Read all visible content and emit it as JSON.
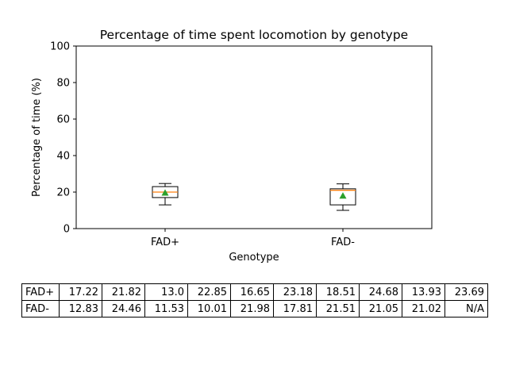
{
  "chart_data": {
    "type": "box",
    "title": "Percentage of time spent locomotion by genotype",
    "xlabel": "Genotype",
    "ylabel": "Percentage of time (%)",
    "ylim": [
      0,
      100
    ],
    "yticks": [
      0,
      20,
      40,
      60,
      80,
      100
    ],
    "categories": [
      "FAD+",
      "FAD-"
    ],
    "boxes": [
      {
        "category": "FAD+",
        "whisker_low": 13.0,
        "q1": 17.0,
        "median": 20.0,
        "q3": 23.0,
        "whisker_high": 24.7,
        "mean": 19.6
      },
      {
        "category": "FAD-",
        "whisker_low": 10.0,
        "q1": 13.0,
        "median": 21.0,
        "q3": 21.8,
        "whisker_high": 24.5,
        "mean": 18.0
      }
    ],
    "colors": {
      "median": "#ff7f0e",
      "mean": "#2ca02c",
      "box": "#000000"
    },
    "grid": false,
    "table": {
      "rows": [
        {
          "label": "FAD+",
          "values": [
            "17.22",
            "21.82",
            "13.0",
            "22.85",
            "16.65",
            "23.18",
            "18.51",
            "24.68",
            "13.93",
            "23.69"
          ]
        },
        {
          "label": "FAD-",
          "values": [
            "12.83",
            "24.46",
            "11.53",
            "10.01",
            "21.98",
            "17.81",
            "21.51",
            "21.05",
            "21.02",
            "N/A"
          ]
        }
      ]
    }
  }
}
